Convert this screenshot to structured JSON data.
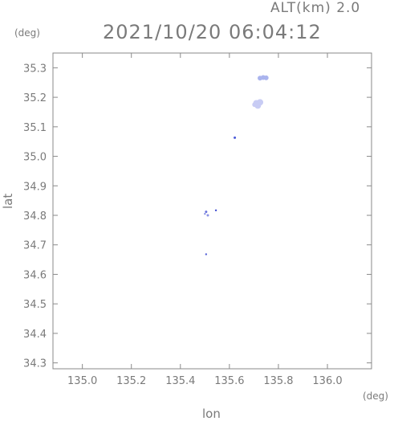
{
  "header": {
    "alt_label": "ALT(km) 2.0",
    "timestamp": "2021/10/20 06:04:12"
  },
  "chart_data": {
    "type": "scatter",
    "title": "2021/10/20 06:04:12",
    "xlabel": "lon",
    "ylabel": "lat",
    "x_unit": "(deg)",
    "y_unit": "(deg)",
    "xlim": [
      134.88,
      136.18
    ],
    "ylim": [
      34.28,
      35.35
    ],
    "xticks": [
      135.0,
      135.2,
      135.4,
      135.6,
      135.8,
      136.0
    ],
    "yticks": [
      34.3,
      34.4,
      34.5,
      34.6,
      34.7,
      34.8,
      34.9,
      35.0,
      35.1,
      35.2,
      35.3
    ],
    "grid": false,
    "points": [
      {
        "x": 135.725,
        "y": 35.265,
        "size": 3,
        "color": "#aab4ee"
      },
      {
        "x": 135.738,
        "y": 35.267,
        "size": 3,
        "color": "#aab4ee"
      },
      {
        "x": 135.75,
        "y": 35.266,
        "size": 3,
        "color": "#aab4ee"
      },
      {
        "x": 135.71,
        "y": 35.18,
        "size": 4,
        "color": "#c8ccf4"
      },
      {
        "x": 135.725,
        "y": 35.183,
        "size": 4,
        "color": "#c8ccf4"
      },
      {
        "x": 135.716,
        "y": 35.172,
        "size": 4,
        "color": "#c8ccf4"
      },
      {
        "x": 135.703,
        "y": 35.175,
        "size": 3,
        "color": "#c8ccf4"
      },
      {
        "x": 135.622,
        "y": 35.063,
        "size": 1.5,
        "color": "#4a5ad8"
      },
      {
        "x": 135.505,
        "y": 34.812,
        "size": 1.5,
        "color": "#6a74dc"
      },
      {
        "x": 135.512,
        "y": 34.8,
        "size": 1.5,
        "color": "#8a92e4"
      },
      {
        "x": 135.5,
        "y": 34.805,
        "size": 1.2,
        "color": "#8a92e4"
      },
      {
        "x": 135.545,
        "y": 34.817,
        "size": 1.2,
        "color": "#3a48d0"
      },
      {
        "x": 135.505,
        "y": 34.668,
        "size": 1.2,
        "color": "#5a66d8"
      }
    ]
  }
}
